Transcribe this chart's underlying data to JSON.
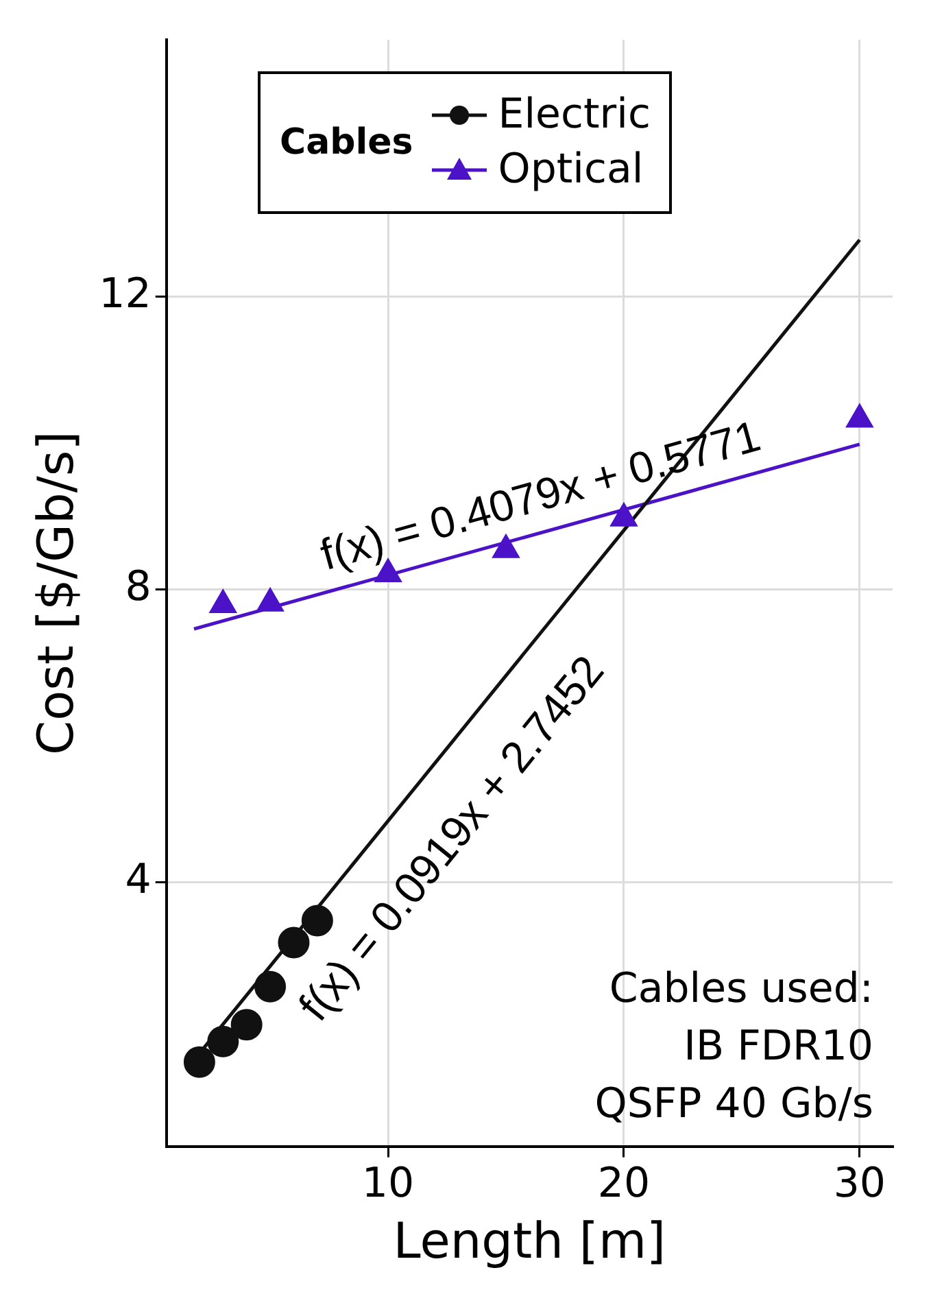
{
  "chart_data": {
    "type": "scatter",
    "xlabel": "Length [m]",
    "ylabel": "Cost [$/Gb/s]",
    "legend_title": "Cables",
    "legend": "top left",
    "grid": true,
    "line_style": "solid",
    "xlim": [
      0.6,
      31.4
    ],
    "xticks": [
      10,
      20,
      30
    ],
    "ylim": [
      0.4,
      15.5
    ],
    "yticks": [
      4,
      8,
      12
    ],
    "series": [
      {
        "name": "Electric",
        "type": "scatter",
        "marker": "circle",
        "color": "#111111",
        "x": [
          2,
          3,
          4,
          5,
          6,
          7
        ],
        "values": [
          1.55,
          1.83,
          2.06,
          2.58,
          3.18,
          3.48
        ]
      },
      {
        "name": "Optical",
        "type": "scatter",
        "marker": "triangle",
        "color": "#4b12c8",
        "x": [
          3,
          5,
          10,
          15,
          20,
          30
        ],
        "values": [
          7.79,
          7.81,
          8.21,
          8.54,
          8.97,
          10.32
        ]
      },
      {
        "type": "line",
        "color": "#111111",
        "x": [
          1.65,
          30
        ],
        "values": [
          1.53,
          12.77
        ]
      },
      {
        "type": "line",
        "color": "#4b12c8",
        "x": [
          1.77,
          30
        ],
        "values": [
          7.46,
          9.98
        ]
      }
    ],
    "annotations": [
      "f(x) = 0.4079x + 0.5771",
      "f(x) = 0.0919x + 2.7452",
      "Cables used:\nIB FDR10\nQSFP 40 Gb/s"
    ]
  }
}
